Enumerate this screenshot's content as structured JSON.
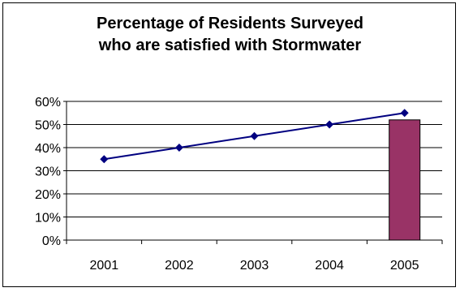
{
  "chart_data": {
    "type": "bar+line",
    "title_lines": [
      "Percentage of Residents Surveyed",
      "who are satisfied with Stormwater"
    ],
    "categories": [
      "2001",
      "2002",
      "2003",
      "2004",
      "2005"
    ],
    "line_series": {
      "values": [
        35,
        40,
        45,
        50,
        55
      ],
      "color": "#000080"
    },
    "bar_series": {
      "categories": [
        "2005"
      ],
      "values": [
        52
      ],
      "color": "#993366"
    },
    "ylim": [
      0,
      60
    ],
    "yticks": [
      "0%",
      "10%",
      "20%",
      "30%",
      "40%",
      "50%",
      "60%"
    ],
    "ytick_values": [
      0,
      10,
      20,
      30,
      40,
      50,
      60
    ],
    "grid": true,
    "legend": "none"
  }
}
